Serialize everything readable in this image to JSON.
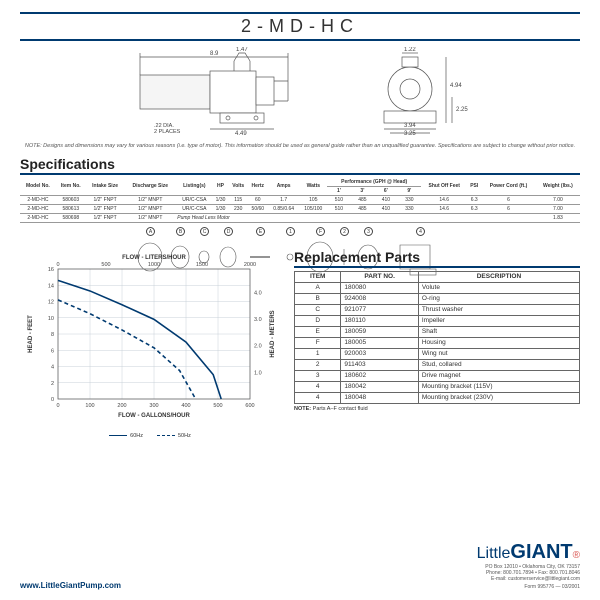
{
  "title": "2-MD-HC",
  "drawings": {
    "side": {
      "w": 8.9,
      "body_w": 4.49,
      "thread": 1.47,
      "hole_dia": ".22 DIA.",
      "hole_note": "2 PLACES"
    },
    "front": {
      "w": 3.94,
      "inner_w": 3.25,
      "h": 4.94,
      "base_h": 2.25,
      "top_w": 1.22
    }
  },
  "note": "NOTE: Designs and dimensions may vary for various reasons (i.e. type of motor). This information should be used as general guide rather than an unqualified guarantee. Specifications are subject to change without prior notice.",
  "spec_title": "Specifications",
  "spec_headers": [
    "Model No.",
    "Item No.",
    "Intake Size",
    "Discharge Size",
    "Listing(s)",
    "HP",
    "Volts",
    "Hertz",
    "Amps",
    "Watts",
    "1'",
    "3'",
    "6'",
    "9'",
    "Shut Off Feet",
    "PSI",
    "Power Cord (ft.)",
    "Weight (lbs.)"
  ],
  "spec_perf_header": "Performance (GPH @ Head)",
  "spec_rows": [
    [
      "2-MD-HC",
      "580603",
      "1/2\" FNPT",
      "1/2\" MNPT",
      "UR/C-CSA",
      "1/30",
      "115",
      "60",
      "1.7",
      "105",
      "510",
      "485",
      "410",
      "330",
      "14.6",
      "6.3",
      "6",
      "7.00"
    ],
    [
      "2-MD-HC",
      "580613",
      "1/2\" FNPT",
      "1/2\" MNPT",
      "UR/C-CSA",
      "1/30",
      "230",
      "50/60",
      "0.85/0.64",
      "105/100",
      "510",
      "485",
      "410",
      "330",
      "14.6",
      "6.3",
      "6",
      "7.00"
    ],
    [
      "2-MD-HC",
      "580698",
      "1/2\" FNPT",
      "1/2\" MNPT",
      "",
      "",
      "",
      "",
      "",
      "",
      "",
      "",
      "",
      "",
      "",
      "",
      "",
      "1.83"
    ]
  ],
  "spec_row3_note": "Pump Head Less Motor",
  "callouts": [
    "A",
    "B",
    "C",
    "D",
    "E",
    "1",
    "F",
    "2",
    "3",
    "4"
  ],
  "parts_title": "Replacement Parts",
  "parts_headers": [
    "ITEM",
    "PART NO.",
    "DESCRIPTION"
  ],
  "parts_rows": [
    [
      "A",
      "180080",
      "Volute"
    ],
    [
      "B",
      "924008",
      "O-ring"
    ],
    [
      "C",
      "921077",
      "Thrust washer"
    ],
    [
      "D",
      "180110",
      "Impeller"
    ],
    [
      "E",
      "180059",
      "Shaft"
    ],
    [
      "F",
      "180005",
      "Housing"
    ],
    [
      "1",
      "920003",
      "Wing nut"
    ],
    [
      "2",
      "911403",
      "Stud, collared"
    ],
    [
      "3",
      "180602",
      "Drive magnet"
    ],
    [
      "4",
      "180042",
      "Mounting bracket (115V)"
    ],
    [
      "4",
      "180048",
      "Mounting bracket (230V)"
    ]
  ],
  "parts_note_label": "NOTE:",
  "parts_note": " Parts A–F contact fluid",
  "chart": {
    "title_top": "FLOW - LITERS/HOUR",
    "title_bottom": "FLOW - GALLONS/HOUR",
    "ylabel_left": "HEAD - FEET",
    "ylabel_right": "HEAD - METERS",
    "x_gph": [
      0,
      100,
      200,
      300,
      400,
      500,
      600
    ],
    "x_lph": [
      0,
      500,
      1000,
      1500,
      2000
    ],
    "y_ft": [
      0,
      2,
      4,
      6,
      8,
      10,
      12,
      14,
      16
    ],
    "y_m": [
      "1.0",
      "2.0",
      "3.0",
      "4.0"
    ],
    "series60": [
      [
        0,
        14.6
      ],
      [
        100,
        13.3
      ],
      [
        200,
        11.6
      ],
      [
        300,
        9.8
      ],
      [
        400,
        7
      ],
      [
        485,
        3
      ],
      [
        510,
        0
      ]
    ],
    "series50": [
      [
        0,
        12.2
      ],
      [
        100,
        10.5
      ],
      [
        200,
        8.5
      ],
      [
        300,
        6.3
      ],
      [
        380,
        3.5
      ],
      [
        430,
        0
      ]
    ],
    "legend60": "60Hz",
    "legend50": "50Hz",
    "line_color": "#003a70",
    "grid_color": "#c8d0d8"
  },
  "footer": {
    "website": "www.LittleGiantPump.com",
    "brand_small": "Little",
    "brand_big": "GIANT",
    "addr1": "PO Box 12010 • Oklahoma City, OK 73157",
    "addr2": "Phone: 800.701.7894 • Fax: 800.701.8046",
    "addr3": "E-mail: customerservice@littlegiant.com",
    "form": "Form 995776 — 03/2001"
  }
}
